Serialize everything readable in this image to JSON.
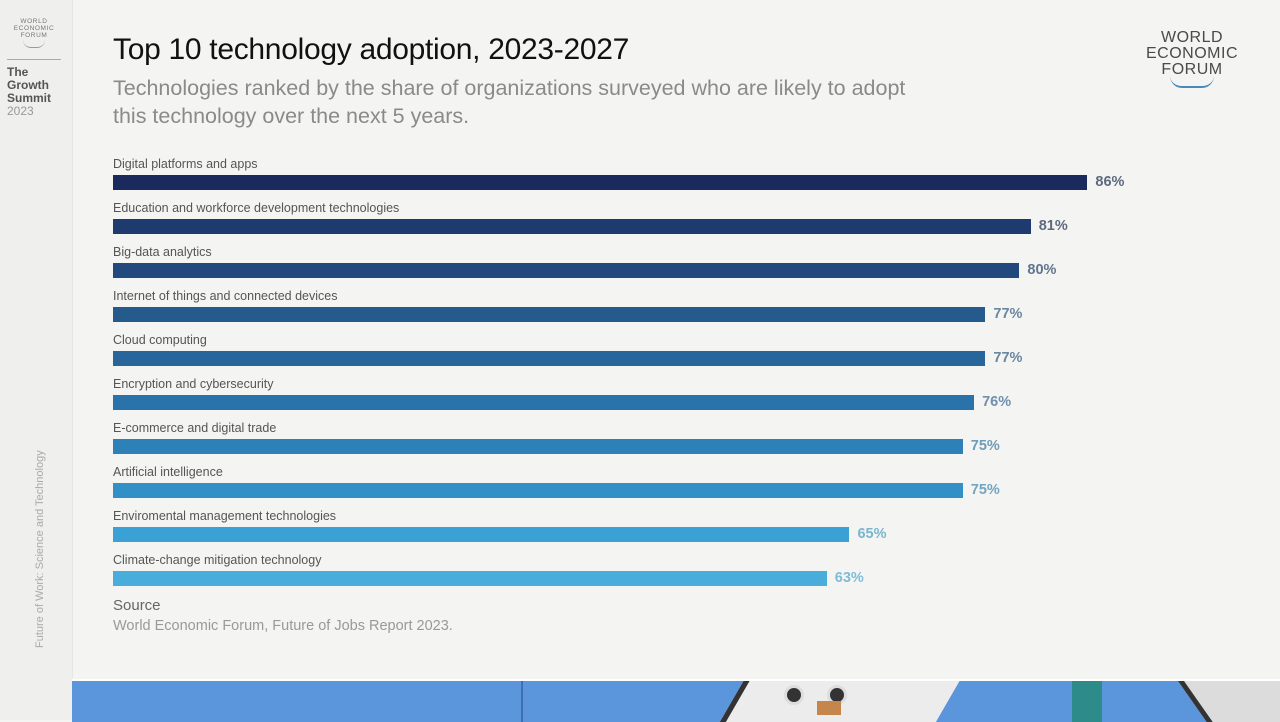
{
  "sidebar": {
    "logo_lines": [
      "WORLD",
      "ECONOMIC",
      "FORUM"
    ],
    "event_lines": [
      "The",
      "Growth",
      "Summit"
    ],
    "event_year": "2023",
    "vertical_caption": "Future of Work: Science and Technology"
  },
  "header": {
    "logo_lines": [
      "WORLD",
      "ECONOMIC",
      "FORUM"
    ]
  },
  "chart_data": {
    "type": "bar",
    "orientation": "horizontal",
    "title": "Top 10 technology adoption, 2023-2027",
    "subtitle": "Technologies ranked by the share of organizations surveyed who are likely to adopt this technology over the next 5 years.",
    "categories": [
      "Digital platforms and apps",
      "Education and workforce development technologies",
      "Big-data analytics",
      "Internet of things and connected devices",
      "Cloud computing",
      "Encryption and cybersecurity",
      "E-commerce and digital trade",
      "Artificial intelligence",
      "Enviromental management technologies",
      "Climate-change mitigation technology"
    ],
    "values": [
      86,
      81,
      80,
      77,
      77,
      76,
      75,
      75,
      65,
      63
    ],
    "value_labels": [
      "86%",
      "81%",
      "80%",
      "77%",
      "77%",
      "76%",
      "75%",
      "75%",
      "65%",
      "63%"
    ],
    "unit": "%",
    "xlim": [
      0,
      100
    ],
    "grid": false,
    "colors": [
      "#1b2a5c",
      "#1f3a6e",
      "#22497e",
      "#255a8c",
      "#27659a",
      "#2a72aa",
      "#2e80b8",
      "#3290c6",
      "#39a1d4",
      "#48addb"
    ],
    "label_colors": [
      "#5d6a7e",
      "#5d6a7e",
      "#607590",
      "#6b86a0",
      "#6b86a0",
      "#6f8fac",
      "#6f9cb8",
      "#72a6c2",
      "#7ab6d0",
      "#80bcd6"
    ],
    "source_heading": "Source",
    "source_text": "World Economic Forum, Future of Jobs Report 2023."
  }
}
